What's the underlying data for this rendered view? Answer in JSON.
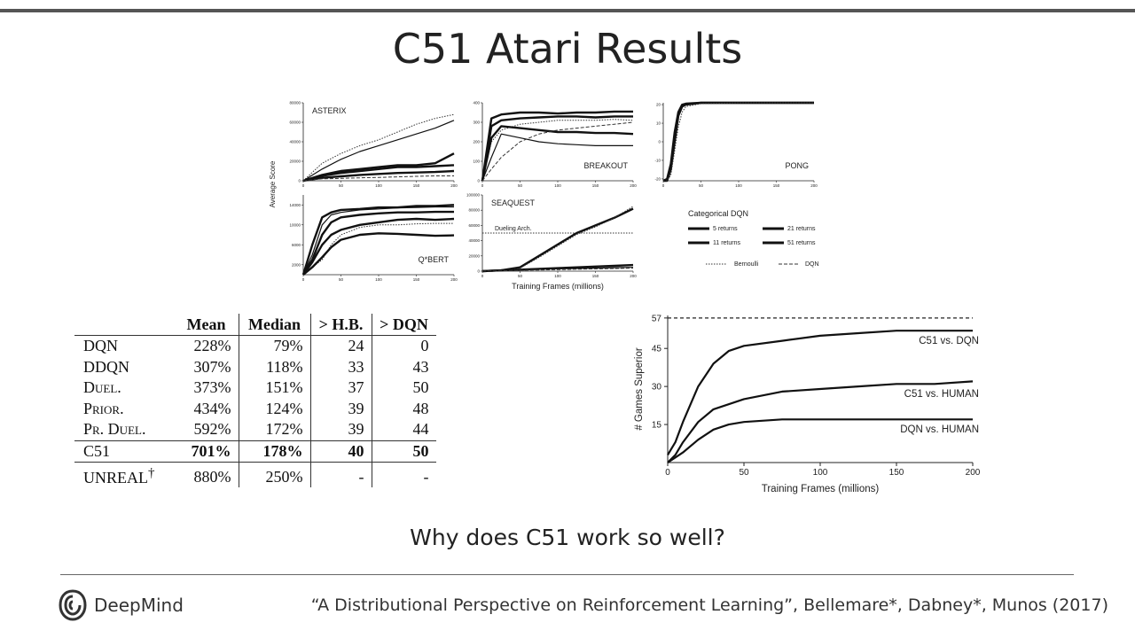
{
  "slide": {
    "title": "C51 Atari Results",
    "question": "Why does C51 work so well?",
    "logo_text": "DeepMind",
    "citation": "“A Distributional Perspective on Reinforcement Learning”, Bellemare*, Dabney*, Munos (2017)"
  },
  "chart_data": [
    {
      "type": "line",
      "title": "ASTERIX",
      "x": [
        0,
        25,
        50,
        75,
        100,
        125,
        150,
        175,
        200
      ],
      "xticks": [
        "0",
        "50",
        "100",
        "150",
        "200"
      ],
      "yticks": [
        "0",
        "20000",
        "40000",
        "60000",
        "80000"
      ],
      "ylim": [
        0,
        80000
      ],
      "xlim": [
        0,
        200
      ],
      "series": [
        {
          "style": "dotted",
          "values": [
            0,
            18000,
            28000,
            36000,
            42000,
            50000,
            58000,
            64000,
            68000
          ]
        },
        {
          "style": "thin",
          "values": [
            0,
            12000,
            22000,
            30000,
            36000,
            42000,
            48000,
            54000,
            62000
          ]
        },
        {
          "style": "bold",
          "values": [
            0,
            6000,
            10000,
            12000,
            14000,
            16000,
            16000,
            18000,
            28000
          ]
        },
        {
          "style": "bold",
          "values": [
            0,
            5000,
            8000,
            10000,
            12000,
            14000,
            14000,
            15000,
            16000
          ]
        },
        {
          "style": "bold",
          "values": [
            0,
            3000,
            4500,
            6000,
            7000,
            8000,
            8500,
            9000,
            10000
          ]
        },
        {
          "style": "dashed",
          "values": [
            0,
            2000,
            2500,
            3000,
            3500,
            4000,
            4500,
            5000,
            5000
          ]
        }
      ]
    },
    {
      "type": "line",
      "title": "BREAKOUT",
      "x": [
        0,
        12,
        25,
        50,
        75,
        100,
        125,
        150,
        175,
        200
      ],
      "xticks": [
        "0",
        "50",
        "100",
        "150",
        "200"
      ],
      "yticks": [
        "0",
        "100",
        "200",
        "300",
        "400"
      ],
      "ylim": [
        0,
        400
      ],
      "xlim": [
        0,
        200
      ],
      "series": [
        {
          "style": "bold",
          "values": [
            0,
            320,
            340,
            350,
            350,
            345,
            350,
            350,
            355,
            355
          ]
        },
        {
          "style": "bold",
          "values": [
            0,
            280,
            310,
            320,
            325,
            330,
            330,
            325,
            330,
            330
          ]
        },
        {
          "style": "dotted",
          "values": [
            0,
            200,
            260,
            290,
            300,
            310,
            310,
            310,
            315,
            310
          ]
        },
        {
          "style": "bold",
          "values": [
            0,
            220,
            280,
            270,
            260,
            250,
            250,
            245,
            245,
            240
          ]
        },
        {
          "style": "thin",
          "values": [
            0,
            120,
            240,
            220,
            200,
            190,
            185,
            180,
            180,
            180
          ]
        },
        {
          "style": "dashed",
          "values": [
            0,
            60,
            120,
            200,
            240,
            260,
            270,
            280,
            290,
            300
          ]
        }
      ]
    },
    {
      "type": "line",
      "title": "PONG",
      "x": [
        0,
        5,
        10,
        15,
        20,
        25,
        30,
        50,
        100,
        150,
        200
      ],
      "xticks": [
        "0",
        "50",
        "100",
        "150",
        "200"
      ],
      "yticks": [
        "-20",
        "-10",
        "0",
        "10",
        "20"
      ],
      "ylim": [
        -21,
        21
      ],
      "xlim": [
        0,
        200
      ],
      "series": [
        {
          "style": "bold",
          "values": [
            -21,
            -20,
            -12,
            5,
            16,
            20,
            20.5,
            21,
            21,
            21,
            21
          ]
        },
        {
          "style": "bold",
          "values": [
            -21,
            -21,
            -15,
            0,
            14,
            19,
            20,
            21,
            21,
            21,
            21
          ]
        },
        {
          "style": "dotted",
          "values": [
            -21,
            -21,
            -18,
            -5,
            8,
            16,
            19,
            20.5,
            21,
            21,
            21
          ]
        }
      ]
    },
    {
      "type": "line",
      "title": "Q*BERT",
      "x": [
        0,
        12,
        25,
        37,
        50,
        75,
        100,
        125,
        150,
        175,
        200
      ],
      "xticks": [
        "0",
        "50",
        "100",
        "150",
        "200"
      ],
      "yticks": [
        "2000",
        "6000",
        "10000",
        "14000"
      ],
      "ylim": [
        0,
        16000
      ],
      "xlim": [
        0,
        200
      ],
      "series": [
        {
          "style": "bold",
          "values": [
            0,
            6000,
            11500,
            12500,
            13000,
            13200,
            13500,
            13500,
            13800,
            13800,
            14000
          ]
        },
        {
          "style": "thin",
          "values": [
            0,
            4000,
            10000,
            12000,
            12500,
            13000,
            13200,
            13400,
            13500,
            13600,
            13600
          ]
        },
        {
          "style": "bold",
          "values": [
            0,
            3000,
            8000,
            10500,
            11500,
            12000,
            12300,
            12500,
            12500,
            12600,
            12600
          ]
        },
        {
          "style": "bold",
          "values": [
            0,
            2500,
            6000,
            8000,
            9000,
            10000,
            10500,
            11000,
            11200,
            11000,
            11200
          ]
        },
        {
          "style": "dotted",
          "values": [
            0,
            1500,
            3000,
            6000,
            8000,
            9500,
            10000,
            10000,
            10200,
            10300,
            10300
          ]
        },
        {
          "style": "bold",
          "values": [
            0,
            1500,
            3500,
            5500,
            7000,
            8000,
            8300,
            8200,
            8000,
            7800,
            7900
          ]
        }
      ]
    },
    {
      "type": "line",
      "title": "SEAQUEST",
      "annotation": "Dueling Arch.",
      "annotation_value": 50000,
      "x": [
        0,
        25,
        50,
        75,
        100,
        125,
        150,
        175,
        200
      ],
      "xticks": [
        "0",
        "50",
        "100",
        "150",
        "200"
      ],
      "yticks": [
        "0",
        "20000",
        "40000",
        "60000",
        "80000",
        "100000"
      ],
      "ylim": [
        0,
        100000
      ],
      "xlim": [
        0,
        200
      ],
      "series": [
        {
          "style": "bold",
          "values": [
            0,
            1000,
            5000,
            20000,
            35000,
            50000,
            60000,
            70000,
            82000
          ]
        },
        {
          "style": "dotted",
          "values": [
            0,
            1000,
            4000,
            18000,
            33000,
            48000,
            58000,
            70000,
            85000
          ]
        },
        {
          "style": "bold",
          "values": [
            0,
            1000,
            2000,
            3000,
            4000,
            5000,
            6000,
            7000,
            8000
          ]
        },
        {
          "style": "thin",
          "values": [
            0,
            800,
            1500,
            2500,
            3000,
            3500,
            4000,
            4500,
            5000
          ]
        },
        {
          "style": "dashed",
          "values": [
            0,
            500,
            1000,
            1500,
            2000,
            2500,
            3000,
            3500,
            4000
          ]
        }
      ]
    },
    {
      "type": "line",
      "title": "",
      "xlabel": "Training Frames (millions)",
      "ylabel": "# Games Superior",
      "x": [
        0,
        5,
        10,
        20,
        30,
        40,
        50,
        75,
        100,
        125,
        150,
        175,
        200
      ],
      "xticks": [
        "0",
        "50",
        "100",
        "150",
        "200"
      ],
      "yticks": [
        "15",
        "30",
        "45",
        "57"
      ],
      "ylim": [
        0,
        58
      ],
      "xlim": [
        0,
        200
      ],
      "reference_line": 57,
      "series": [
        {
          "name": "C51 vs. DQN",
          "values": [
            3,
            8,
            16,
            30,
            39,
            44,
            46,
            48,
            50,
            51,
            52,
            52,
            52
          ]
        },
        {
          "name": "C51 vs. HUMAN",
          "values": [
            0,
            3,
            8,
            16,
            21,
            23,
            25,
            28,
            29,
            30,
            31,
            31,
            32
          ]
        },
        {
          "name": "DQN vs. HUMAN",
          "values": [
            0,
            2,
            4,
            9,
            13,
            15,
            16,
            17,
            17,
            17,
            17,
            17,
            17
          ]
        }
      ]
    }
  ],
  "grid": {
    "ylabel": "Average Score",
    "xlabel": "Training Frames (millions)",
    "legend_title": "Categorical DQN",
    "legend_items": [
      "5 returns",
      "21 returns",
      "11 returns",
      "51 returns"
    ],
    "legend_baselines": [
      "Bernoulli",
      "DQN"
    ]
  },
  "table": {
    "headers": [
      "Mean",
      "Median",
      "> H.B.",
      "> DQN"
    ],
    "rows": [
      {
        "agent": "DQN",
        "mean": "228%",
        "median": "79%",
        "hb": "24",
        "dqn": "0"
      },
      {
        "agent": "DDQN",
        "mean": "307%",
        "median": "118%",
        "hb": "33",
        "dqn": "43"
      },
      {
        "agent": "Duel.",
        "mean": "373%",
        "median": "151%",
        "hb": "37",
        "dqn": "50"
      },
      {
        "agent": "Prior.",
        "mean": "434%",
        "median": "124%",
        "hb": "39",
        "dqn": "48"
      },
      {
        "agent": "Pr. Duel.",
        "mean": "592%",
        "median": "172%",
        "hb": "39",
        "dqn": "44"
      }
    ],
    "c51": {
      "agent": "C51",
      "mean": "701%",
      "median": "178%",
      "hb": "40",
      "dqn": "50"
    },
    "unreal": {
      "agent": "UNREAL",
      "dagger": "†",
      "mean": "880%",
      "median": "250%",
      "hb": "-",
      "dqn": "-"
    }
  }
}
